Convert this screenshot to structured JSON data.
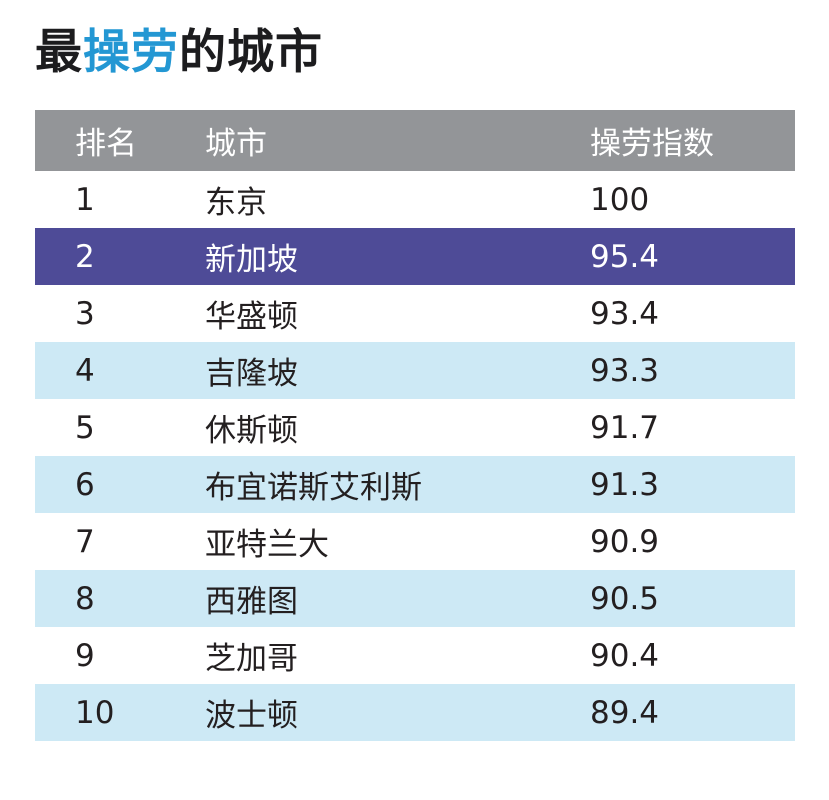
{
  "title": {
    "prefix": "最",
    "highlight": "操劳",
    "suffix": "的城市"
  },
  "colors": {
    "title_accent": "#2397d3",
    "header_bg": "#939598",
    "header_text": "#ffffff",
    "row_alt_bg": "#cde9f5",
    "highlight_bg": "#4e4b97",
    "highlight_text": "#ffffff",
    "text_color": "#231f20"
  },
  "chart_data": {
    "type": "table",
    "title": "最操劳的城市",
    "columns": [
      "排名",
      "城市",
      "操劳指数"
    ],
    "rows": [
      [
        1,
        "东京",
        100
      ],
      [
        2,
        "新加坡",
        95.4
      ],
      [
        3,
        "华盛顿",
        93.4
      ],
      [
        4,
        "吉隆坡",
        93.3
      ],
      [
        5,
        "休斯顿",
        91.7
      ],
      [
        6,
        "布宜诺斯艾利斯",
        91.3
      ],
      [
        7,
        "亚特兰大",
        90.9
      ],
      [
        8,
        "西雅图",
        90.5
      ],
      [
        9,
        "芝加哥",
        90.4
      ],
      [
        10,
        "波士顿",
        89.4
      ]
    ],
    "highlighted_row_rank": 2
  }
}
